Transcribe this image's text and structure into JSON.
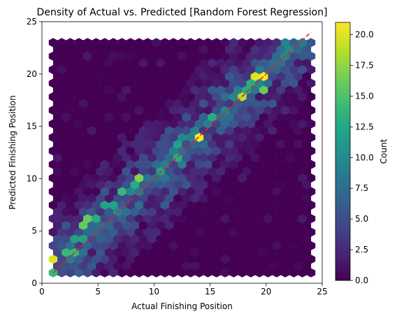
{
  "chart_data": {
    "type": "heatmap",
    "subtype": "hexbin",
    "title": "Density of Actual vs. Predicted [Random Forest Regression]",
    "xlabel": "Actual Finishing Position",
    "ylabel": "Predicted Finishing Position",
    "xlim": [
      0,
      25
    ],
    "ylim": [
      0,
      25
    ],
    "xticks": [
      0,
      5,
      10,
      15,
      20,
      25
    ],
    "yticks": [
      0,
      5,
      10,
      15,
      20,
      25
    ],
    "xtick_labels": [
      "0",
      "5",
      "10",
      "15",
      "20",
      "25"
    ],
    "ytick_labels": [
      "0",
      "5",
      "10",
      "15",
      "20",
      "25"
    ],
    "hexbin_extent": {
      "x": [
        1,
        24
      ],
      "y": [
        1,
        23
      ]
    },
    "colorbar": {
      "label": "Count",
      "min": 0,
      "max": 21,
      "ticks": [
        0,
        2.5,
        5,
        7.5,
        10,
        12.5,
        15,
        17.5,
        20
      ],
      "tick_labels": [
        "0.0",
        "2.5",
        "5.0",
        "7.5",
        "10.0",
        "12.5",
        "15.0",
        "17.5",
        "20.0"
      ],
      "colormap": "viridis"
    },
    "reference_line": {
      "x": [
        1,
        24
      ],
      "y": [
        1,
        24
      ],
      "color": "#d62728",
      "style": "dashed"
    },
    "high_density_bins": [
      {
        "x": 1.0,
        "y": 1.2,
        "count": 14
      },
      {
        "x": 1.0,
        "y": 2.5,
        "count": 20
      },
      {
        "x": 2.5,
        "y": 2.8,
        "count": 14
      },
      {
        "x": 3.3,
        "y": 4.3,
        "count": 12
      },
      {
        "x": 4.0,
        "y": 5.8,
        "count": 16
      },
      {
        "x": 4.7,
        "y": 6.2,
        "count": 13
      },
      {
        "x": 6.0,
        "y": 7.3,
        "count": 12
      },
      {
        "x": 6.8,
        "y": 8.8,
        "count": 14
      },
      {
        "x": 8.2,
        "y": 9.3,
        "count": 13
      },
      {
        "x": 9.0,
        "y": 9.8,
        "count": 17
      },
      {
        "x": 10.3,
        "y": 10.6,
        "count": 12
      },
      {
        "x": 11.8,
        "y": 12.1,
        "count": 13
      },
      {
        "x": 12.3,
        "y": 13.1,
        "count": 12
      },
      {
        "x": 14.0,
        "y": 14.1,
        "count": 21
      },
      {
        "x": 15.3,
        "y": 15.7,
        "count": 13
      },
      {
        "x": 17.7,
        "y": 18.0,
        "count": 19
      },
      {
        "x": 19.0,
        "y": 19.8,
        "count": 20
      },
      {
        "x": 19.7,
        "y": 19.9,
        "count": 21
      },
      {
        "x": 19.7,
        "y": 18.6,
        "count": 16
      },
      {
        "x": 18.5,
        "y": 18.8,
        "count": 13
      }
    ]
  }
}
